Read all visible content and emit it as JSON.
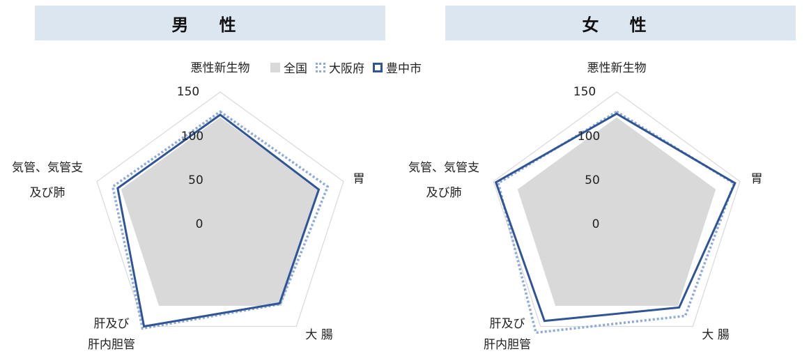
{
  "charts_header": {
    "male_title": "男 性",
    "female_title": "女 性"
  },
  "legend": {
    "national": "全国",
    "osaka": "大阪府",
    "toyonaka": "豊中市"
  },
  "colors": {
    "national_fill": "#d9d9d9",
    "osaka_line": "#8eaadb",
    "toyonaka_line": "#2f5597",
    "grid": "#d9d9d9",
    "header_bg": "#dce6f1"
  },
  "chart_data": [
    {
      "type": "radar",
      "title": "男 性",
      "categories": [
        "悪性新生物",
        "胃",
        "大 腸",
        "肝及び\n肝内胆管",
        "気管、気管支\n及び肺"
      ],
      "ticks": [
        0,
        50,
        100,
        150
      ],
      "range": [
        0,
        150
      ],
      "series": [
        {
          "name": "全国",
          "values": [
            100,
            100,
            100,
            100,
            100
          ]
        },
        {
          "name": "大阪府",
          "values": [
            112,
            118,
            97,
            155,
            118
          ]
        },
        {
          "name": "豊中市",
          "values": [
            106,
            100,
            95,
            150,
            108
          ]
        }
      ]
    },
    {
      "type": "radar",
      "title": "女 性",
      "categories": [
        "悪性新生物",
        "胃",
        "大 腸",
        "肝及び\n肝内胆管",
        "気管、気管支\n及び肺"
      ],
      "ticks": [
        0,
        50,
        100,
        150
      ],
      "range": [
        0,
        150
      ],
      "series": [
        {
          "name": "全国",
          "values": [
            100,
            100,
            100,
            100,
            100
          ]
        },
        {
          "name": "大阪府",
          "values": [
            112,
            138,
            125,
            165,
            140
          ]
        },
        {
          "name": "豊中市",
          "values": [
            108,
            140,
            105,
            137,
            145
          ]
        }
      ]
    }
  ]
}
